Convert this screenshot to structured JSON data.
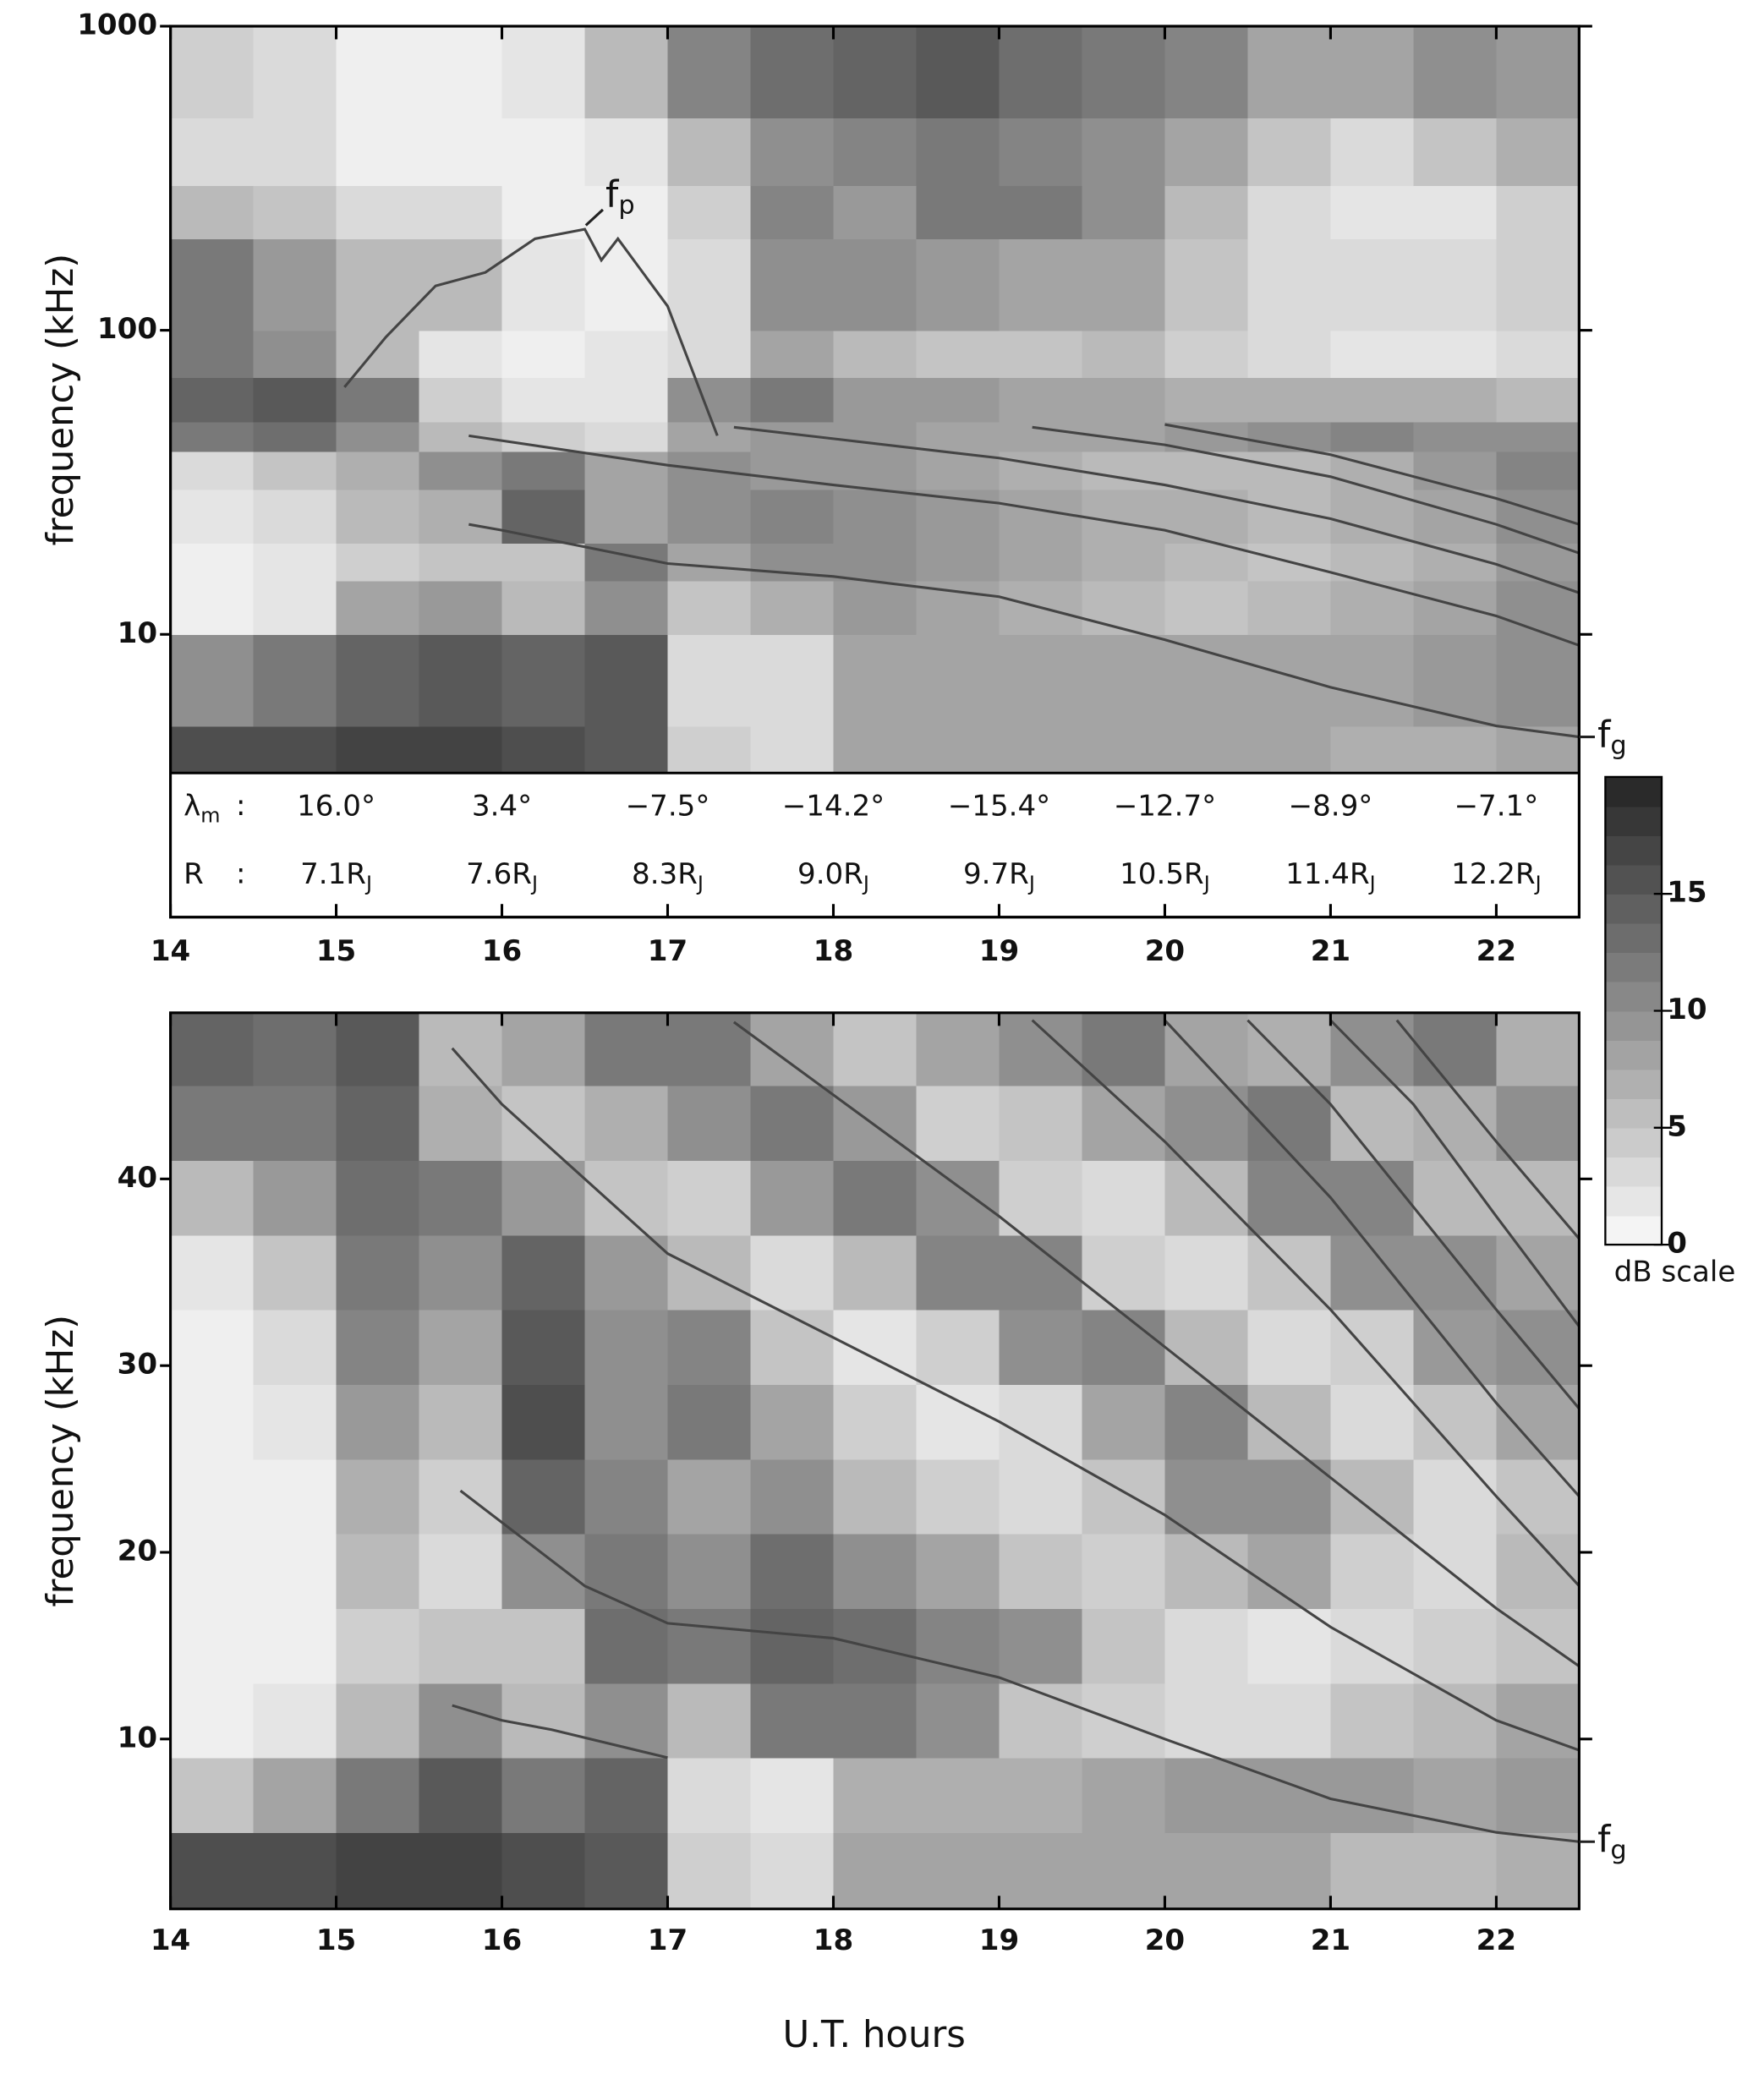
{
  "chart_data": [
    {
      "type": "heatmap",
      "y_label": "frequency (kHz)",
      "log_y": true,
      "xlim": [
        14,
        22.5
      ],
      "xticks": [
        14,
        15,
        16,
        17,
        18,
        19,
        20,
        21,
        22
      ],
      "ylim": [
        3.5,
        1000
      ],
      "yticks": [
        10,
        100,
        1000
      ],
      "x_bins": [
        14,
        14.5,
        15,
        15.5,
        16,
        16.5,
        17,
        17.5,
        18,
        18.5,
        19,
        19.5,
        20,
        20.5,
        21,
        21.5,
        22,
        22.5
      ],
      "y_bins": [
        3.5,
        5,
        10,
        15,
        20,
        30,
        40,
        50,
        70,
        100,
        200,
        300,
        500,
        1000
      ],
      "z": [
        [
          16,
          16,
          17,
          17,
          16,
          15,
          4,
          3,
          8,
          8,
          8,
          8,
          8,
          8,
          7,
          7,
          8
        ],
        [
          10,
          12,
          14,
          15,
          14,
          15,
          3,
          3,
          8,
          8,
          8,
          8,
          8,
          8,
          8,
          9,
          10
        ],
        [
          1,
          2,
          8,
          9,
          6,
          10,
          5,
          7,
          9,
          8,
          7,
          6,
          5,
          6,
          7,
          8,
          10
        ],
        [
          1,
          2,
          4,
          5,
          5,
          12,
          8,
          10,
          10,
          9,
          8,
          7,
          6,
          5,
          6,
          7,
          9
        ],
        [
          2,
          3,
          6,
          7,
          14,
          8,
          10,
          11,
          10,
          9,
          8,
          7,
          7,
          6,
          7,
          8,
          10
        ],
        [
          3,
          5,
          7,
          10,
          12,
          8,
          10,
          9,
          9,
          8,
          7,
          6,
          6,
          6,
          7,
          9,
          11
        ],
        [
          12,
          13,
          10,
          6,
          4,
          3,
          8,
          9,
          9,
          8,
          8,
          8,
          9,
          10,
          11,
          10,
          10
        ],
        [
          14,
          15,
          12,
          4,
          2,
          2,
          10,
          12,
          9,
          9,
          8,
          8,
          7,
          7,
          7,
          7,
          6
        ],
        [
          12,
          10,
          6,
          2,
          1,
          2,
          3,
          8,
          6,
          5,
          5,
          6,
          4,
          3,
          2,
          2,
          3
        ],
        [
          12,
          9,
          6,
          6,
          2,
          1,
          3,
          10,
          10,
          9,
          8,
          8,
          5,
          3,
          3,
          3,
          4
        ],
        [
          6,
          5,
          3,
          3,
          1,
          1,
          4,
          11,
          9,
          12,
          12,
          10,
          6,
          3,
          2,
          2,
          4
        ],
        [
          3,
          3,
          1,
          1,
          1,
          2,
          6,
          10,
          11,
          12,
          11,
          10,
          8,
          5,
          3,
          5,
          7
        ],
        [
          4,
          3,
          1,
          1,
          2,
          6,
          11,
          13,
          14,
          15,
          13,
          12,
          11,
          8,
          8,
          10,
          9
        ]
      ],
      "line_color": "#444",
      "lines": [
        {
          "x": [
            15.05,
            15.3,
            15.6,
            15.9,
            16.2,
            16.5,
            16.6,
            16.7,
            17,
            17.3
          ],
          "y": [
            65,
            95,
            140,
            155,
            200,
            215,
            170,
            200,
            120,
            45
          ]
        },
        {
          "x": [
            15.8,
            16,
            17,
            18,
            19,
            20,
            21,
            22,
            22.5
          ],
          "y": [
            23,
            22,
            17.1,
            15.5,
            13.3,
            9.6,
            6.7,
            5,
            4.6
          ]
        },
        {
          "x": [
            15.8,
            17,
            18,
            19,
            20,
            21,
            22,
            22.5
          ],
          "y": [
            45,
            36,
            31,
            27,
            22,
            16,
            11.5,
            9.2
          ]
        },
        {
          "x": [
            17.4,
            18,
            19,
            20,
            21,
            22,
            22.5
          ],
          "y": [
            48,
            44,
            38,
            31,
            24,
            17,
            13.7
          ]
        },
        {
          "x": [
            19.2,
            20,
            21,
            22,
            22.5
          ],
          "y": [
            48,
            42,
            33,
            23,
            18.5
          ]
        },
        {
          "x": [
            20,
            21,
            22,
            22.5
          ],
          "y": [
            49,
            39,
            28,
            23
          ]
        }
      ],
      "annotations": [
        {
          "text": "f",
          "sub": "p"
        },
        {
          "text": "f",
          "sub": "g"
        }
      ],
      "position_table": {
        "rows": [
          {
            "label": {
              "text": "λ",
              "sub": "m"
            },
            "separator": ":",
            "cells": [
              {
                "text": "16.0°"
              },
              {
                "text": "3.4°"
              },
              {
                "text": "−7.5°"
              },
              {
                "text": "−14.2°"
              },
              {
                "text": "−15.4°"
              },
              {
                "text": "−12.7°"
              },
              {
                "text": "−8.9°"
              },
              {
                "text": "−7.1°"
              }
            ]
          },
          {
            "label": {
              "text": "R"
            },
            "separator": ":",
            "cells": [
              {
                "text": "7.1R",
                "sub": "J"
              },
              {
                "text": "7.6R",
                "sub": "J"
              },
              {
                "text": "8.3R",
                "sub": "J"
              },
              {
                "text": "9.0R",
                "sub": "J"
              },
              {
                "text": "9.7R",
                "sub": "J"
              },
              {
                "text": "10.5R",
                "sub": "J"
              },
              {
                "text": "11.4R",
                "sub": "J"
              },
              {
                "text": "12.2R",
                "sub": "J"
              }
            ]
          }
        ]
      }
    },
    {
      "type": "heatmap",
      "y_label": "frequency (kHz)",
      "x_label": "U.T. hours",
      "log_y": false,
      "xlim": [
        14,
        22.5
      ],
      "xticks": [
        14,
        15,
        16,
        17,
        18,
        19,
        20,
        21,
        22
      ],
      "ylim": [
        0.9,
        48.9
      ],
      "yticks": [
        10,
        20,
        30,
        40
      ],
      "x_bins": [
        14,
        14.5,
        15,
        15.5,
        16,
        16.5,
        17,
        17.5,
        18,
        18.5,
        19,
        19.5,
        20,
        20.5,
        21,
        21.5,
        22,
        22.5
      ],
      "y_bins": [
        0.9,
        5,
        9,
        13,
        17,
        21,
        25,
        29,
        33,
        37,
        41,
        45,
        48.9
      ],
      "z": [
        [
          16,
          16,
          17,
          17,
          16,
          15,
          4,
          3,
          8,
          8,
          8,
          8,
          8,
          8,
          6,
          6,
          7
        ],
        [
          5,
          8,
          12,
          15,
          12,
          14,
          3,
          2,
          7,
          7,
          7,
          8,
          9,
          9,
          9,
          8,
          9
        ],
        [
          1,
          2,
          6,
          10,
          6,
          10,
          6,
          12,
          12,
          10,
          5,
          4,
          3,
          3,
          5,
          6,
          8
        ],
        [
          1,
          1,
          4,
          5,
          5,
          13,
          12,
          14,
          13,
          11,
          10,
          5,
          3,
          2,
          3,
          4,
          5
        ],
        [
          1,
          1,
          6,
          3,
          10,
          12,
          10,
          13,
          10,
          8,
          5,
          4,
          6,
          8,
          4,
          3,
          6
        ],
        [
          1,
          1,
          7,
          4,
          14,
          11,
          8,
          10,
          6,
          4,
          3,
          5,
          10,
          10,
          6,
          3,
          5
        ],
        [
          1,
          2,
          9,
          6,
          16,
          10,
          12,
          8,
          4,
          2,
          3,
          8,
          11,
          6,
          3,
          5,
          8
        ],
        [
          1,
          3,
          11,
          8,
          15,
          10,
          11,
          5,
          2,
          4,
          10,
          11,
          6,
          3,
          4,
          9,
          10
        ],
        [
          2,
          5,
          12,
          10,
          14,
          9,
          6,
          3,
          6,
          11,
          11,
          4,
          3,
          5,
          10,
          10,
          8
        ],
        [
          6,
          9,
          13,
          12,
          9,
          5,
          4,
          9,
          12,
          10,
          4,
          3,
          6,
          11,
          11,
          6,
          6
        ],
        [
          12,
          12,
          14,
          7,
          5,
          7,
          10,
          12,
          9,
          4,
          5,
          8,
          10,
          12,
          6,
          7,
          10
        ],
        [
          14,
          13,
          15,
          6,
          8,
          12,
          12,
          8,
          5,
          8,
          10,
          12,
          8,
          7,
          10,
          12,
          7
        ]
      ],
      "line_color": "#444",
      "lines": [
        {
          "x": [
            15.7,
            16,
            16.3,
            17
          ],
          "y": [
            11.8,
            11,
            10.5,
            9
          ]
        },
        {
          "x": [
            15.75,
            16.5,
            17,
            18,
            19,
            20,
            21,
            22,
            22.5
          ],
          "y": [
            23.3,
            18.2,
            16.2,
            15.4,
            13.3,
            10,
            6.8,
            5,
            4.5
          ]
        },
        {
          "x": [
            15.7,
            16,
            17,
            18,
            19,
            20,
            21,
            22,
            22.5
          ],
          "y": [
            47,
            44,
            36,
            31.5,
            27,
            22,
            16,
            11,
            9.4
          ]
        },
        {
          "x": [
            17.4,
            18,
            19,
            20,
            21,
            22,
            22.5
          ],
          "y": [
            48.4,
            44.5,
            38,
            31,
            24,
            17,
            13.9
          ]
        },
        {
          "x": [
            19.2,
            20,
            21,
            22,
            22.5
          ],
          "y": [
            48.5,
            42,
            33,
            23,
            18.2
          ]
        },
        {
          "x": [
            20,
            21,
            22,
            22.5
          ],
          "y": [
            48.5,
            39,
            28,
            23
          ]
        },
        {
          "x": [
            20.5,
            21,
            22,
            22.5
          ],
          "y": [
            48.5,
            44,
            33,
            27.7
          ]
        },
        {
          "x": [
            21,
            21.5,
            22,
            22.5
          ],
          "y": [
            48.5,
            44,
            38,
            32.1
          ]
        },
        {
          "x": [
            21.4,
            22,
            22.5
          ],
          "y": [
            48.5,
            42,
            36.8
          ]
        }
      ],
      "annotations": [
        {
          "text": "f",
          "sub": "g"
        }
      ],
      "colorbar": {
        "label": "dB scale",
        "clim": [
          0,
          20
        ],
        "cticks": [
          0,
          5,
          10,
          15
        ]
      }
    }
  ]
}
